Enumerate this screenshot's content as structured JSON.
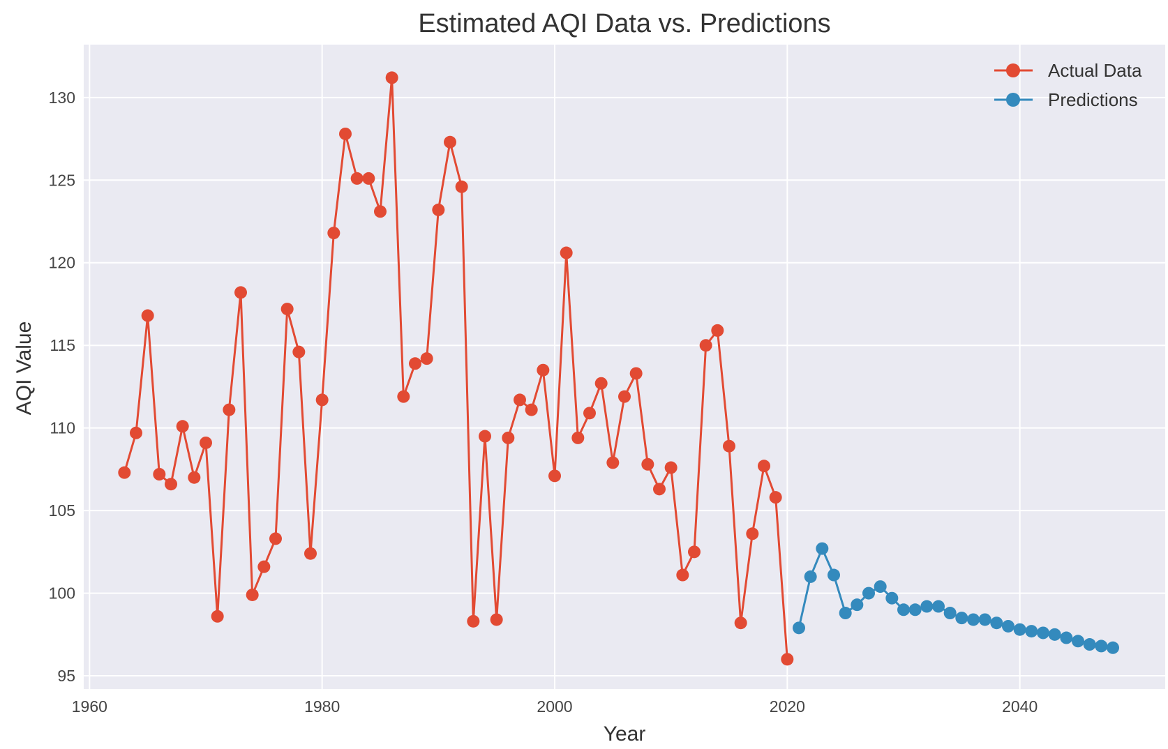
{
  "chart_data": {
    "type": "line",
    "title": "Estimated AQI Data vs. Predictions",
    "xlabel": "Year",
    "ylabel": "AQI Value",
    "xlim": [
      1959.5,
      2052.5
    ],
    "ylim": [
      94.2,
      133.2
    ],
    "xticks": [
      1960,
      1980,
      2000,
      2020,
      2040
    ],
    "yticks": [
      95,
      100,
      105,
      110,
      115,
      120,
      125,
      130
    ],
    "grid": true,
    "legend": "top-right",
    "colors": {
      "background": "#eaeaf2",
      "grid": "#ffffff",
      "actual": "#e24a33",
      "predicted": "#348abd"
    },
    "series": [
      {
        "name": "Actual Data",
        "x": [
          1963,
          1964,
          1965,
          1966,
          1967,
          1968,
          1969,
          1970,
          1971,
          1972,
          1973,
          1974,
          1975,
          1976,
          1977,
          1978,
          1979,
          1980,
          1981,
          1982,
          1983,
          1984,
          1985,
          1986,
          1987,
          1988,
          1989,
          1990,
          1991,
          1992,
          1993,
          1994,
          1995,
          1996,
          1997,
          1998,
          1999,
          2000,
          2001,
          2002,
          2003,
          2004,
          2005,
          2006,
          2007,
          2008,
          2009,
          2010,
          2011,
          2012,
          2013,
          2014,
          2015,
          2016,
          2017,
          2018,
          2019,
          2020
        ],
        "values": [
          107.3,
          109.7,
          116.8,
          107.2,
          106.6,
          110.1,
          107.0,
          109.1,
          98.6,
          111.1,
          118.2,
          99.9,
          101.6,
          103.3,
          117.2,
          114.6,
          102.4,
          111.7,
          121.8,
          127.8,
          125.1,
          125.1,
          123.1,
          131.2,
          111.9,
          113.9,
          114.2,
          123.2,
          127.3,
          124.6,
          98.3,
          109.5,
          98.4,
          109.4,
          111.7,
          111.1,
          113.5,
          107.1,
          120.6,
          109.4,
          110.9,
          112.7,
          107.9,
          111.9,
          113.3,
          107.8,
          106.3,
          107.6,
          101.1,
          102.5,
          115.0,
          115.9,
          108.9,
          98.2,
          103.6,
          107.7,
          105.8,
          96.0
        ]
      },
      {
        "name": "Predictions",
        "x": [
          2021,
          2022,
          2023,
          2024,
          2025,
          2026,
          2027,
          2028,
          2029,
          2030,
          2031,
          2032,
          2033,
          2034,
          2035,
          2036,
          2037,
          2038,
          2039,
          2040,
          2041,
          2042,
          2043,
          2044,
          2045,
          2046,
          2047,
          2048
        ],
        "values": [
          97.9,
          101.0,
          102.7,
          101.1,
          98.8,
          99.3,
          100.0,
          100.4,
          99.7,
          99.0,
          99.0,
          99.2,
          99.2,
          98.8,
          98.5,
          98.4,
          98.4,
          98.2,
          98.0,
          97.8,
          97.7,
          97.6,
          97.5,
          97.3,
          97.1,
          96.9,
          96.8,
          96.7
        ]
      }
    ]
  }
}
